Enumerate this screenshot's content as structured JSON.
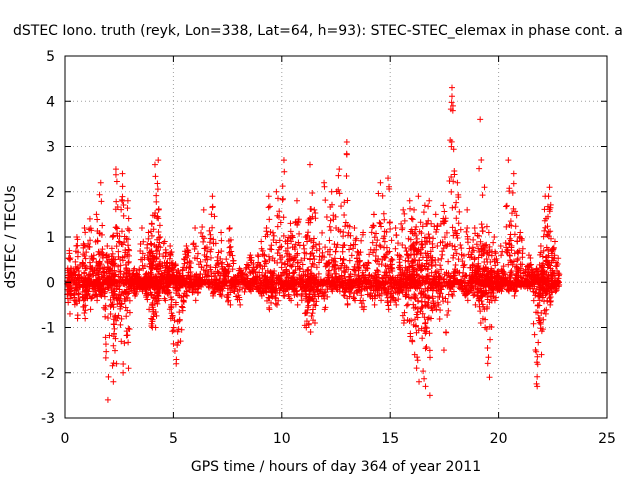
{
  "chart_data": {
    "type": "scatter",
    "title": "dSTEC Iono. truth (reyk, Lon=338, Lat=64, h=93): STEC-STEC_elemax in phase cont. a",
    "xlabel": "GPS time / hours of day 364 of year 2011",
    "ylabel": "dSTEC  / TECUs",
    "xlim": [
      0,
      25
    ],
    "ylim": [
      -3,
      5
    ],
    "x_ticks": [
      "0",
      "5",
      "10",
      "15",
      "20",
      "25"
    ],
    "y_ticks": [
      "-3",
      "-2",
      "-1",
      "0",
      "1",
      "2",
      "3",
      "4",
      "5"
    ],
    "grid": true,
    "marker": "+",
    "marker_color": "#ff0000",
    "bursts": [
      [
        0.1,
        0.3,
        0.7,
        -0.7
      ],
      [
        0.4,
        0.7,
        1.0,
        -0.8
      ],
      [
        0.8,
        1.0,
        1.2,
        -0.8
      ],
      [
        1.0,
        1.3,
        1.4,
        -0.6
      ],
      [
        1.3,
        1.6,
        1.5,
        -0.4
      ],
      [
        1.5,
        1.8,
        2.2,
        -0.3
      ],
      [
        1.8,
        2.1,
        0.8,
        -2.6
      ],
      [
        2.1,
        2.3,
        1.0,
        -2.2
      ],
      [
        2.2,
        2.5,
        2.5,
        -1.8
      ],
      [
        2.5,
        2.8,
        2.4,
        -2.0
      ],
      [
        2.8,
        3.0,
        1.8,
        -1.9
      ],
      [
        3.0,
        3.4,
        0.3,
        -0.3
      ],
      [
        3.4,
        3.7,
        1.2,
        -0.2
      ],
      [
        3.7,
        4.0,
        1.1,
        -0.6
      ],
      [
        3.9,
        4.1,
        1.3,
        -1.0
      ],
      [
        4.0,
        4.3,
        2.6,
        -1.0
      ],
      [
        4.2,
        4.4,
        2.7,
        -0.4
      ],
      [
        4.4,
        4.8,
        0.9,
        -0.4
      ],
      [
        4.7,
        5.0,
        0.8,
        -0.8
      ],
      [
        4.9,
        5.3,
        0.4,
        -1.8
      ],
      [
        5.1,
        5.5,
        0.2,
        -1.3
      ],
      [
        5.4,
        5.8,
        0.8,
        -0.3
      ],
      [
        5.8,
        6.2,
        1.2,
        -0.4
      ],
      [
        6.2,
        6.6,
        1.6,
        0.0
      ],
      [
        6.6,
        7.0,
        1.9,
        -0.3
      ],
      [
        7.0,
        7.4,
        1.1,
        -0.3
      ],
      [
        7.4,
        7.8,
        1.2,
        -0.5
      ],
      [
        7.8,
        8.3,
        0.3,
        -0.5
      ],
      [
        8.3,
        8.8,
        0.6,
        -0.2
      ],
      [
        8.8,
        9.3,
        0.9,
        -0.3
      ],
      [
        9.2,
        9.6,
        1.9,
        -0.6
      ],
      [
        9.5,
        10.0,
        2.0,
        -0.5
      ],
      [
        9.9,
        10.3,
        2.7,
        -0.3
      ],
      [
        10.2,
        10.6,
        1.3,
        -0.4
      ],
      [
        10.5,
        10.9,
        1.8,
        -0.5
      ],
      [
        10.9,
        11.3,
        1.0,
        -1.0
      ],
      [
        11.1,
        11.5,
        2.6,
        -1.1
      ],
      [
        11.3,
        11.7,
        1.6,
        -0.9
      ],
      [
        11.7,
        12.2,
        2.2,
        -0.6
      ],
      [
        12.1,
        12.5,
        2.0,
        -0.2
      ],
      [
        12.4,
        12.9,
        2.5,
        -0.2
      ],
      [
        12.8,
        13.2,
        3.1,
        -0.5
      ],
      [
        13.1,
        13.6,
        1.2,
        -0.4
      ],
      [
        13.5,
        14.0,
        1.1,
        -0.6
      ],
      [
        14.0,
        14.5,
        1.5,
        -0.5
      ],
      [
        14.3,
        14.8,
        2.2,
        -0.4
      ],
      [
        14.7,
        15.1,
        2.3,
        -0.6
      ],
      [
        15.0,
        15.5,
        1.2,
        -0.5
      ],
      [
        15.4,
        15.8,
        1.6,
        -0.9
      ],
      [
        15.7,
        16.1,
        1.8,
        -1.2
      ],
      [
        15.9,
        16.3,
        1.6,
        -1.6
      ],
      [
        16.1,
        16.5,
        1.9,
        -2.2
      ],
      [
        16.4,
        16.8,
        1.7,
        -2.3
      ],
      [
        16.6,
        17.0,
        1.8,
        -2.5
      ],
      [
        16.9,
        17.3,
        1.5,
        -0.6
      ],
      [
        17.2,
        17.7,
        1.7,
        -1.5
      ],
      [
        17.7,
        18.0,
        4.3,
        -0.3
      ],
      [
        17.9,
        18.3,
        2.2,
        0.0
      ],
      [
        18.3,
        18.8,
        1.6,
        -0.4
      ],
      [
        18.7,
        19.1,
        1.2,
        -0.5
      ],
      [
        19.0,
        19.3,
        3.6,
        -0.9
      ],
      [
        19.2,
        19.5,
        2.1,
        -1.0
      ],
      [
        19.4,
        19.7,
        1.1,
        -2.1
      ],
      [
        19.6,
        20.0,
        1.0,
        -0.4
      ],
      [
        19.9,
        20.3,
        0.8,
        -0.2
      ],
      [
        20.3,
        20.6,
        2.7,
        -0.2
      ],
      [
        20.5,
        20.9,
        2.4,
        -0.3
      ],
      [
        20.8,
        21.2,
        1.1,
        -0.1
      ],
      [
        21.2,
        21.6,
        0.6,
        -0.1
      ],
      [
        21.6,
        21.9,
        0.3,
        -2.3
      ],
      [
        21.8,
        22.1,
        0.8,
        -1.6
      ],
      [
        22.0,
        22.3,
        1.9,
        -0.7
      ],
      [
        22.2,
        22.5,
        2.1,
        -0.5
      ],
      [
        22.4,
        22.8,
        0.9,
        -0.2
      ]
    ]
  }
}
